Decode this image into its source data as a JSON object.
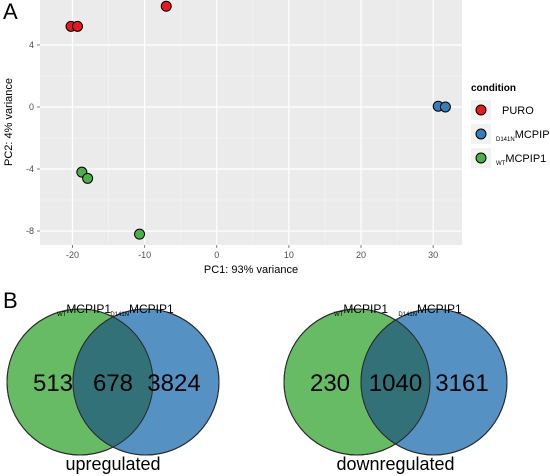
{
  "panels": {
    "a": "A",
    "b": "B"
  },
  "chart_data": [
    {
      "type": "scatter",
      "xlabel": "PC1: 93% variance",
      "ylabel": "PC2: 4% variance",
      "xlim": [
        -24.5,
        34
      ],
      "ylim": [
        -8.9,
        6.9
      ],
      "xticks": [
        -20,
        -10,
        0,
        10,
        20,
        30
      ],
      "yticks": [
        -8,
        -4,
        0,
        4
      ],
      "grid": true,
      "legend_position": "right",
      "legend_title": "condition",
      "series": [
        {
          "name": "PURO",
          "color": "#e41a1c",
          "points": [
            {
              "x": -20.2,
              "y": 5.2
            },
            {
              "x": -19.3,
              "y": 5.2
            },
            {
              "x": -7.0,
              "y": 6.5
            }
          ]
        },
        {
          "name": "D141N MCPIP1",
          "subscript": "D141N",
          "label_main": "MCPIP1",
          "color": "#377eb8",
          "points": [
            {
              "x": 30.7,
              "y": 0.05
            },
            {
              "x": 31.7,
              "y": 0.0
            }
          ]
        },
        {
          "name": "WT MCPIP1",
          "subscript": "WT",
          "label_main": "MCPIP1",
          "color": "#4daf4a",
          "points": [
            {
              "x": -18.7,
              "y": -4.2
            },
            {
              "x": -17.9,
              "y": -4.6
            },
            {
              "x": -10.7,
              "y": -8.2
            }
          ]
        }
      ]
    },
    {
      "type": "venn",
      "title": "upregulated",
      "left_set": {
        "subscript": "WT",
        "label_main": "MCPIP1",
        "color": "#4daf4a"
      },
      "right_set": {
        "subscript": "D141N",
        "label_main": "MCPIP1",
        "color": "#377eb8"
      },
      "values": {
        "left_only": "513",
        "both": "678",
        "right_only": "3824"
      }
    },
    {
      "type": "venn",
      "title": "downregulated",
      "left_set": {
        "subscript": "WT",
        "label_main": "MCPIP1",
        "color": "#4daf4a"
      },
      "right_set": {
        "subscript": "D141N",
        "label_main": "MCPIP1",
        "color": "#377eb8"
      },
      "values": {
        "left_only": "230",
        "both": "1040",
        "right_only": "3161"
      }
    }
  ]
}
